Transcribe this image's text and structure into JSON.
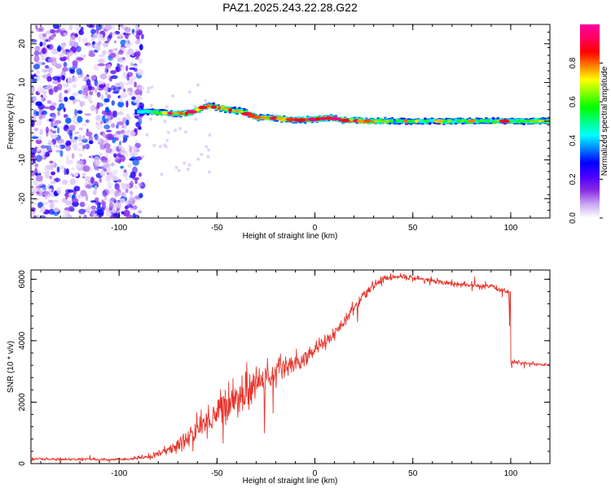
{
  "title": "PAZ1.2025.243.22.28.G22",
  "chart_data": [
    {
      "type": "heatmap",
      "name": "spectrogram",
      "xlabel": "Height of straight line (km)",
      "ylabel": "Frequency (Hz)",
      "xlim": [
        -145,
        120
      ],
      "ylim": [
        -25,
        25
      ],
      "xticks": [
        -100,
        -50,
        0,
        50,
        100
      ],
      "xtick_labels": [
        "-100",
        "-50",
        "0",
        "50",
        "100"
      ],
      "yticks": [
        -20,
        -10,
        0,
        10,
        20
      ],
      "ytick_labels": [
        "-20",
        "-10",
        "0",
        "10",
        "20"
      ],
      "colorbar": {
        "label": "Normalized spectral amplitude",
        "range": [
          0,
          1
        ],
        "ticks": [
          0.0,
          0.2,
          0.4,
          0.6,
          0.8
        ],
        "tick_labels": [
          "0.0",
          "0.2",
          "0.4",
          "0.6",
          "0.8"
        ],
        "stops": [
          "#ffffff",
          "#c9a8f5",
          "#8a2be2",
          "#4b00ff",
          "#0000ff",
          "#0080ff",
          "#00ffff",
          "#00ff80",
          "#00ff00",
          "#80ff00",
          "#ffff00",
          "#ff8000",
          "#ff0000",
          "#ff0060",
          "#ff00a0"
        ]
      },
      "noise_region": {
        "x": [
          -145,
          -88
        ],
        "y": [
          -25,
          25
        ],
        "amplitude": 0.2
      },
      "ridge": {
        "x": [
          -92,
          -85,
          -75,
          -65,
          -55,
          -45,
          -38,
          -30,
          -22,
          -15,
          -8,
          0,
          8,
          15,
          25,
          40,
          60,
          80,
          100,
          120
        ],
        "freq": [
          2.5,
          2.5,
          2.0,
          2.0,
          4.0,
          3.0,
          2.5,
          1.0,
          0.8,
          0.5,
          0.3,
          0.5,
          0.8,
          0.2,
          0.0,
          0.0,
          0.0,
          0.0,
          0.0,
          0.0
        ],
        "amplitude": [
          0.35,
          0.55,
          0.75,
          0.85,
          0.8,
          0.8,
          0.75,
          0.85,
          0.85,
          0.8,
          0.8,
          0.95,
          0.9,
          0.85,
          0.9,
          0.55,
          0.55,
          0.6,
          0.6,
          0.7
        ]
      }
    },
    {
      "type": "line",
      "name": "snr",
      "xlabel": "Height of straight line (km)",
      "ylabel": "SNR (10 * v/v)",
      "xlim": [
        -145,
        120
      ],
      "ylim": [
        0,
        6300
      ],
      "xticks": [
        -100,
        -50,
        0,
        50,
        100
      ],
      "xtick_labels": [
        "-100",
        "-50",
        "0",
        "50",
        "100"
      ],
      "yticks": [
        0,
        2000,
        4000,
        6000
      ],
      "ytick_labels": [
        "0",
        "2000",
        "4000",
        "6000"
      ],
      "color": "#e8332a",
      "x": [
        -145,
        -120,
        -100,
        -90,
        -85,
        -80,
        -75,
        -70,
        -65,
        -60,
        -55,
        -50,
        -45,
        -40,
        -35,
        -30,
        -25,
        -20,
        -15,
        -10,
        -5,
        0,
        5,
        10,
        15,
        20,
        25,
        30,
        35,
        40,
        50,
        60,
        70,
        80,
        90,
        99,
        100,
        101,
        110,
        120
      ],
      "y": [
        150,
        140,
        130,
        180,
        220,
        320,
        450,
        600,
        800,
        1100,
        1400,
        1650,
        1950,
        2150,
        2400,
        2600,
        2800,
        2950,
        3150,
        3300,
        3500,
        3700,
        3950,
        4250,
        4650,
        5050,
        5450,
        5800,
        6000,
        6100,
        6050,
        5950,
        5850,
        5800,
        5750,
        5600,
        3300,
        3300,
        3250,
        3200
      ],
      "noise": [
        40,
        40,
        40,
        50,
        80,
        120,
        150,
        200,
        300,
        350,
        450,
        500,
        550,
        550,
        550,
        500,
        450,
        400,
        350,
        300,
        300,
        250,
        220,
        200,
        180,
        150,
        130,
        110,
        100,
        100,
        90,
        80,
        80,
        80,
        80,
        80,
        60,
        60,
        50,
        50
      ]
    }
  ]
}
